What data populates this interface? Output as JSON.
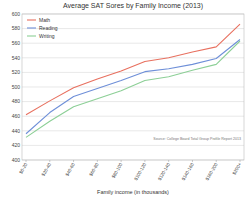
{
  "chart_data": {
    "type": "line",
    "title": "Average SAT Sores by Family Income (2013)",
    "x_label": "Family income (in thousands)",
    "annotations": [
      "Source: College Board Total Group Profile Report 2013"
    ],
    "categories": [
      "$0-20",
      "$20-40",
      "$40-60",
      "$60-80",
      "$80-100",
      "$100-120",
      "$120-140",
      "$140-160",
      "$160-200",
      "$200+"
    ],
    "series": [
      {
        "name": "Math",
        "color": "#e8705f",
        "values": [
          462,
          481,
          499,
          511,
          522,
          535,
          540,
          548,
          555,
          586
        ]
      },
      {
        "name": "Reading",
        "color": "#6e8fd8",
        "values": [
          436,
          465,
          487,
          498,
          509,
          521,
          525,
          531,
          539,
          565
        ]
      },
      {
        "name": "Writing",
        "color": "#8ccf96",
        "values": [
          431,
          453,
          473,
          484,
          495,
          509,
          514,
          523,
          531,
          563
        ]
      }
    ],
    "ylim": [
      400,
      600
    ],
    "yticks": [
      400,
      420,
      440,
      460,
      480,
      500,
      520,
      540,
      560,
      580,
      600
    ],
    "grid": true,
    "legend": "upper left"
  }
}
